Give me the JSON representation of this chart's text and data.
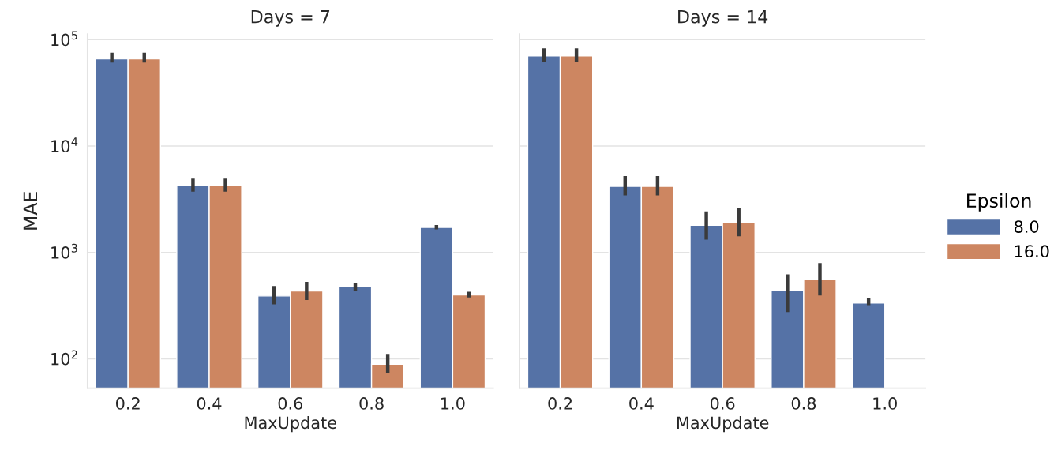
{
  "chart_data": [
    {
      "type": "bar",
      "title": "Days = 7",
      "xlabel": "MaxUpdate",
      "ylabel": "MAE",
      "categories": [
        "0.2",
        "0.4",
        "0.6",
        "0.8",
        "1.0"
      ],
      "log": "y",
      "ylim": [
        53,
        113000
      ],
      "yticks": [
        {
          "value": 100,
          "label": "10$^{2}$"
        },
        {
          "value": 1000,
          "label": "10$^{3}$"
        },
        {
          "value": 10000,
          "label": "10$^{4}$"
        },
        {
          "value": 100000,
          "label": "10$^{5}$"
        }
      ],
      "grid": "y",
      "legend": "right",
      "legend_title": "Epsilon",
      "series": [
        {
          "name": "8.0",
          "color": "#5572a6",
          "values": [
            66000,
            4260,
            390,
            474,
            1720
          ],
          "errors": [
            [
              61000,
              75500
            ],
            [
              3730,
              4940
            ],
            [
              325,
              484
            ],
            [
              436,
              516
            ],
            [
              1650,
              1810
            ]
          ]
        },
        {
          "name": "16.0",
          "color": "#cd8661",
          "values": [
            66000,
            4260,
            435,
            89,
            398
          ],
          "errors": [
            [
              61000,
              75500
            ],
            [
              3730,
              4940
            ],
            [
              357,
              530
            ],
            [
              73,
              111
            ],
            [
              378,
              427
            ]
          ]
        }
      ]
    },
    {
      "type": "bar",
      "title": "Days = 14",
      "xlabel": "MaxUpdate",
      "categories": [
        "0.2",
        "0.4",
        "0.6",
        "0.8",
        "1.0"
      ],
      "log": "y",
      "ylim": [
        53,
        113000
      ],
      "yticks": [
        {
          "value": 100,
          "label": null
        },
        {
          "value": 1000,
          "label": null
        },
        {
          "value": 10000,
          "label": null
        },
        {
          "value": 100000,
          "label": null
        }
      ],
      "tick_labels": "x",
      "grid": "y",
      "series": [
        {
          "name": "8.0",
          "color": "#5572a6",
          "values": [
            70400,
            4180,
            1800,
            438,
            335
          ],
          "errors": [
            [
              62300,
              83000
            ],
            [
              3430,
              5220
            ],
            [
              1320,
              2430
            ],
            [
              275,
              622
            ],
            [
              320,
              372
            ]
          ]
        },
        {
          "name": "16.0",
          "color": "#cd8661",
          "values": [
            70400,
            4180,
            1930,
            560,
            null
          ],
          "errors": [
            [
              62300,
              83000
            ],
            [
              3430,
              5220
            ],
            [
              1420,
              2620
            ],
            [
              394,
              794
            ],
            null
          ]
        }
      ]
    }
  ]
}
